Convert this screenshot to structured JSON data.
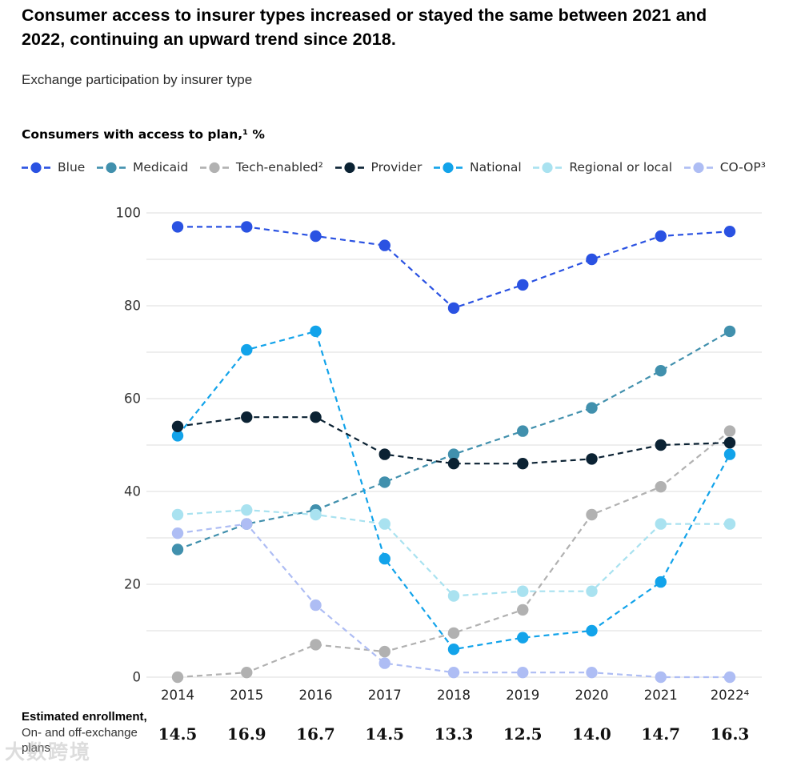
{
  "page": {
    "title": "Consumer access to insurer types increased or stayed the same between 2021 and 2022, continuing an upward trend since 2018.",
    "subtitle": "Exchange participation by insurer type",
    "axis_label": "Consumers with access to plan,¹ %",
    "watermark": "大数跨境"
  },
  "chart_data": {
    "type": "line",
    "title": "Exchange participation by insurer type",
    "ylabel": "Consumers with access to plan, %",
    "categories": [
      "2014",
      "2015",
      "2016",
      "2017",
      "2018",
      "2019",
      "2020",
      "2021",
      "2022⁴"
    ],
    "ylim": [
      0,
      100
    ],
    "y_tick_labels": [
      "0",
      "20",
      "40",
      "60",
      "80",
      "100"
    ],
    "grid": "horizontal gridlines every 10, light gray",
    "legend_position": "top",
    "line_style": "dashed with round markers",
    "series": [
      {
        "name": "Blue",
        "color": "#2a52e2",
        "values": [
          97,
          97,
          95,
          93,
          79.5,
          84.5,
          90,
          95,
          96
        ]
      },
      {
        "name": "Medicaid",
        "color": "#4190ad",
        "values": [
          27.5,
          33,
          36,
          42,
          48,
          53,
          58,
          66,
          74.5
        ]
      },
      {
        "name": "Tech-enabled²",
        "color": "#b1b1b1",
        "values": [
          0,
          1,
          7,
          5.5,
          9.5,
          14.5,
          35,
          41,
          53
        ]
      },
      {
        "name": "Provider",
        "color": "#0b2233",
        "values": [
          54,
          56,
          56,
          48,
          46,
          46,
          47,
          50,
          50.5
        ]
      },
      {
        "name": "National",
        "color": "#12a3ea",
        "values": [
          52,
          70.5,
          74.5,
          25.5,
          6,
          8.5,
          10,
          20.5,
          48
        ]
      },
      {
        "name": "Regional or local",
        "color": "#a9e2f0",
        "values": [
          35,
          36,
          35,
          33,
          17.5,
          18.5,
          18.5,
          33,
          33
        ]
      },
      {
        "name": "CO-OP³",
        "color": "#aebdf4",
        "values": [
          31,
          33,
          15.5,
          3,
          1,
          1,
          1,
          0,
          0
        ]
      }
    ]
  },
  "enrollment": {
    "label_bold": "Estimated enrollment,",
    "label_regular": "On- and off-exchange plans",
    "values": [
      "14.5",
      "16.9",
      "16.7",
      "14.5",
      "13.3",
      "12.5",
      "14.0",
      "14.7",
      "16.3"
    ]
  }
}
